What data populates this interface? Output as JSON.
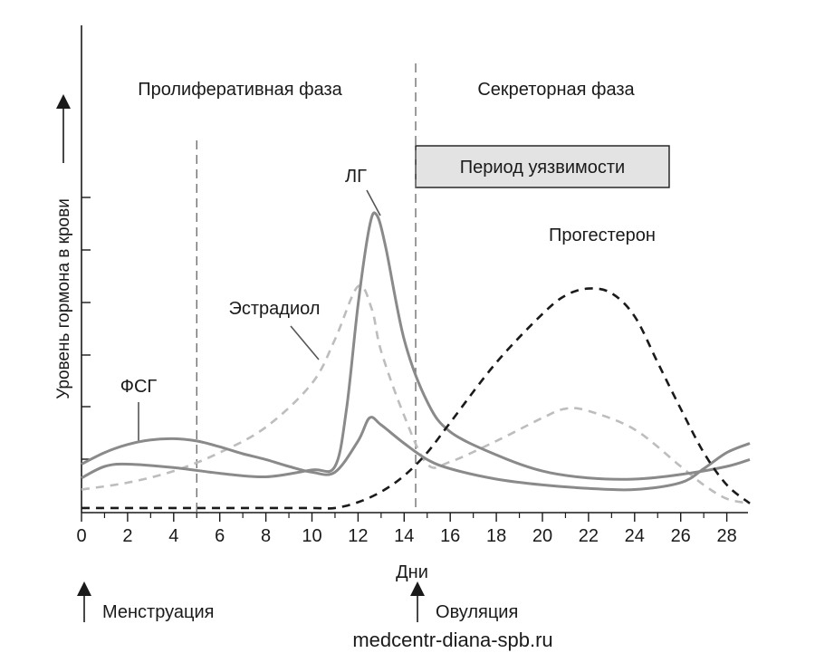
{
  "chart_data": {
    "type": "line",
    "xlabel": "Дни",
    "ylabel": "Уровень гормона в крови",
    "xlim": [
      0,
      29
    ],
    "x_ticks": [
      0,
      2,
      4,
      6,
      8,
      10,
      12,
      14,
      16,
      18,
      20,
      22,
      24,
      26,
      28
    ],
    "grid": false,
    "phases": [
      {
        "label": "Пролиферативная фаза",
        "x_center": 7
      },
      {
        "label": "Секреторная фаза",
        "x_center": 21
      }
    ],
    "phase_dividers": [
      5,
      14.5
    ],
    "vulnerability_box": {
      "label": "Период уязвимости",
      "x_start": 14.5,
      "x_end": 25.5
    },
    "events": [
      {
        "label": "Менструация",
        "x": 0
      },
      {
        "label": "Овуляция",
        "x": 14.5
      }
    ],
    "series": [
      {
        "name": "ФСГ",
        "style": "solid",
        "color": "#8a8a8a",
        "points": [
          [
            0,
            2.1
          ],
          [
            1,
            2.6
          ],
          [
            2,
            2.95
          ],
          [
            3,
            3.15
          ],
          [
            4,
            3.2
          ],
          [
            5,
            3.1
          ],
          [
            6,
            2.85
          ],
          [
            7,
            2.55
          ],
          [
            8,
            2.3
          ],
          [
            9,
            2.0
          ],
          [
            10,
            1.75
          ],
          [
            11,
            1.75
          ],
          [
            12,
            3.1
          ],
          [
            12.5,
            4.1
          ],
          [
            13,
            3.8
          ],
          [
            14,
            3.0
          ],
          [
            15,
            2.3
          ],
          [
            16,
            1.9
          ],
          [
            18,
            1.45
          ],
          [
            20,
            1.2
          ],
          [
            22,
            1.05
          ],
          [
            24,
            1.0
          ],
          [
            26,
            1.3
          ],
          [
            27,
            1.9
          ],
          [
            28,
            2.6
          ],
          [
            29,
            3.0
          ]
        ]
      },
      {
        "name": "ЛГ",
        "style": "solid",
        "color": "#8a8a8a",
        "points": [
          [
            0,
            1.5
          ],
          [
            1,
            2.0
          ],
          [
            2,
            2.1
          ],
          [
            4,
            1.95
          ],
          [
            6,
            1.7
          ],
          [
            8,
            1.55
          ],
          [
            10,
            1.85
          ],
          [
            11,
            2.0
          ],
          [
            11.5,
            4.5
          ],
          [
            12,
            9.0
          ],
          [
            12.5,
            12.4
          ],
          [
            12.8,
            12.9
          ],
          [
            13.2,
            11.5
          ],
          [
            14,
            7.5
          ],
          [
            15,
            4.8
          ],
          [
            16,
            3.5
          ],
          [
            18,
            2.5
          ],
          [
            20,
            1.8
          ],
          [
            22,
            1.5
          ],
          [
            24,
            1.45
          ],
          [
            26,
            1.65
          ],
          [
            28,
            2.0
          ],
          [
            29,
            2.3
          ]
        ]
      },
      {
        "name": "Эстрадиол",
        "style": "dashed",
        "color": "#bdbdbd",
        "points": [
          [
            0,
            1.0
          ],
          [
            2,
            1.3
          ],
          [
            4,
            1.8
          ],
          [
            6,
            2.6
          ],
          [
            8,
            3.7
          ],
          [
            10,
            5.6
          ],
          [
            11,
            7.5
          ],
          [
            12,
            9.8
          ],
          [
            12.6,
            8.8
          ],
          [
            13,
            7.0
          ],
          [
            14,
            4.2
          ],
          [
            15,
            2.1
          ],
          [
            16,
            2.2
          ],
          [
            18,
            3.1
          ],
          [
            20,
            4.1
          ],
          [
            21,
            4.5
          ],
          [
            22,
            4.4
          ],
          [
            24,
            3.6
          ],
          [
            26,
            2.0
          ],
          [
            27,
            1.2
          ],
          [
            28,
            0.6
          ],
          [
            29,
            0.4
          ]
        ]
      },
      {
        "name": "Прогестерон",
        "style": "dashed",
        "color": "#1a1a1a",
        "points": [
          [
            0,
            0.2
          ],
          [
            2,
            0.2
          ],
          [
            4,
            0.2
          ],
          [
            6,
            0.2
          ],
          [
            8,
            0.2
          ],
          [
            10,
            0.2
          ],
          [
            11,
            0.2
          ],
          [
            12,
            0.45
          ],
          [
            13,
            0.9
          ],
          [
            14,
            1.6
          ],
          [
            15,
            2.6
          ],
          [
            16,
            3.9
          ],
          [
            18,
            6.5
          ],
          [
            20,
            8.6
          ],
          [
            21,
            9.4
          ],
          [
            22,
            9.7
          ],
          [
            23,
            9.5
          ],
          [
            24,
            8.5
          ],
          [
            25,
            6.5
          ],
          [
            26,
            4.5
          ],
          [
            27,
            2.6
          ],
          [
            28,
            1.2
          ],
          [
            29,
            0.4
          ]
        ]
      }
    ]
  },
  "watermark": "medcentr-diana-spb.ru"
}
